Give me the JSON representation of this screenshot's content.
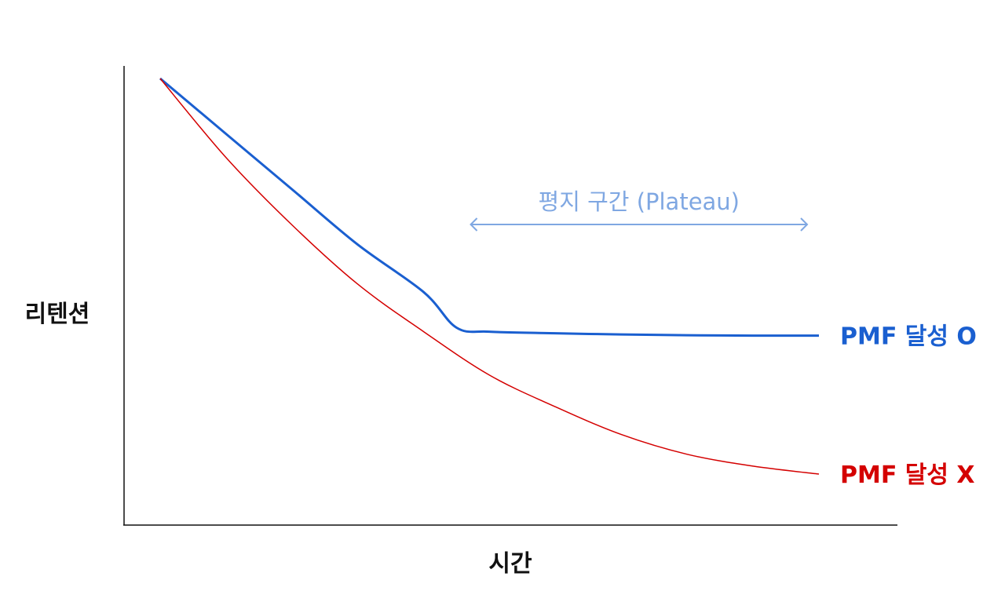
{
  "chart_data": {
    "type": "line",
    "title": "",
    "xlabel": "시간",
    "ylabel": "리텐션",
    "axis_ticks": false,
    "grid": false,
    "series": [
      {
        "name": "PMF 달성 O",
        "color": "#1a5fd0",
        "x": [
          0,
          10,
          20,
          30,
          40,
          45,
          50,
          60,
          70,
          80,
          90,
          100
        ],
        "y": [
          100,
          86,
          72,
          58,
          46,
          37,
          36,
          35.6,
          35.3,
          35.1,
          35.0,
          35.0
        ]
      },
      {
        "name": "PMF 달성 X",
        "color": "#d40000",
        "x": [
          0,
          10,
          20,
          30,
          40,
          50,
          60,
          70,
          80,
          90,
          100
        ],
        "y": [
          100,
          80,
          63,
          48,
          36,
          25,
          17,
          10,
          5,
          2,
          0
        ]
      }
    ],
    "annotation": {
      "text": "평지 구간 (Plateau)",
      "color": "#7fa7e2",
      "x_range": [
        45,
        100
      ]
    }
  }
}
